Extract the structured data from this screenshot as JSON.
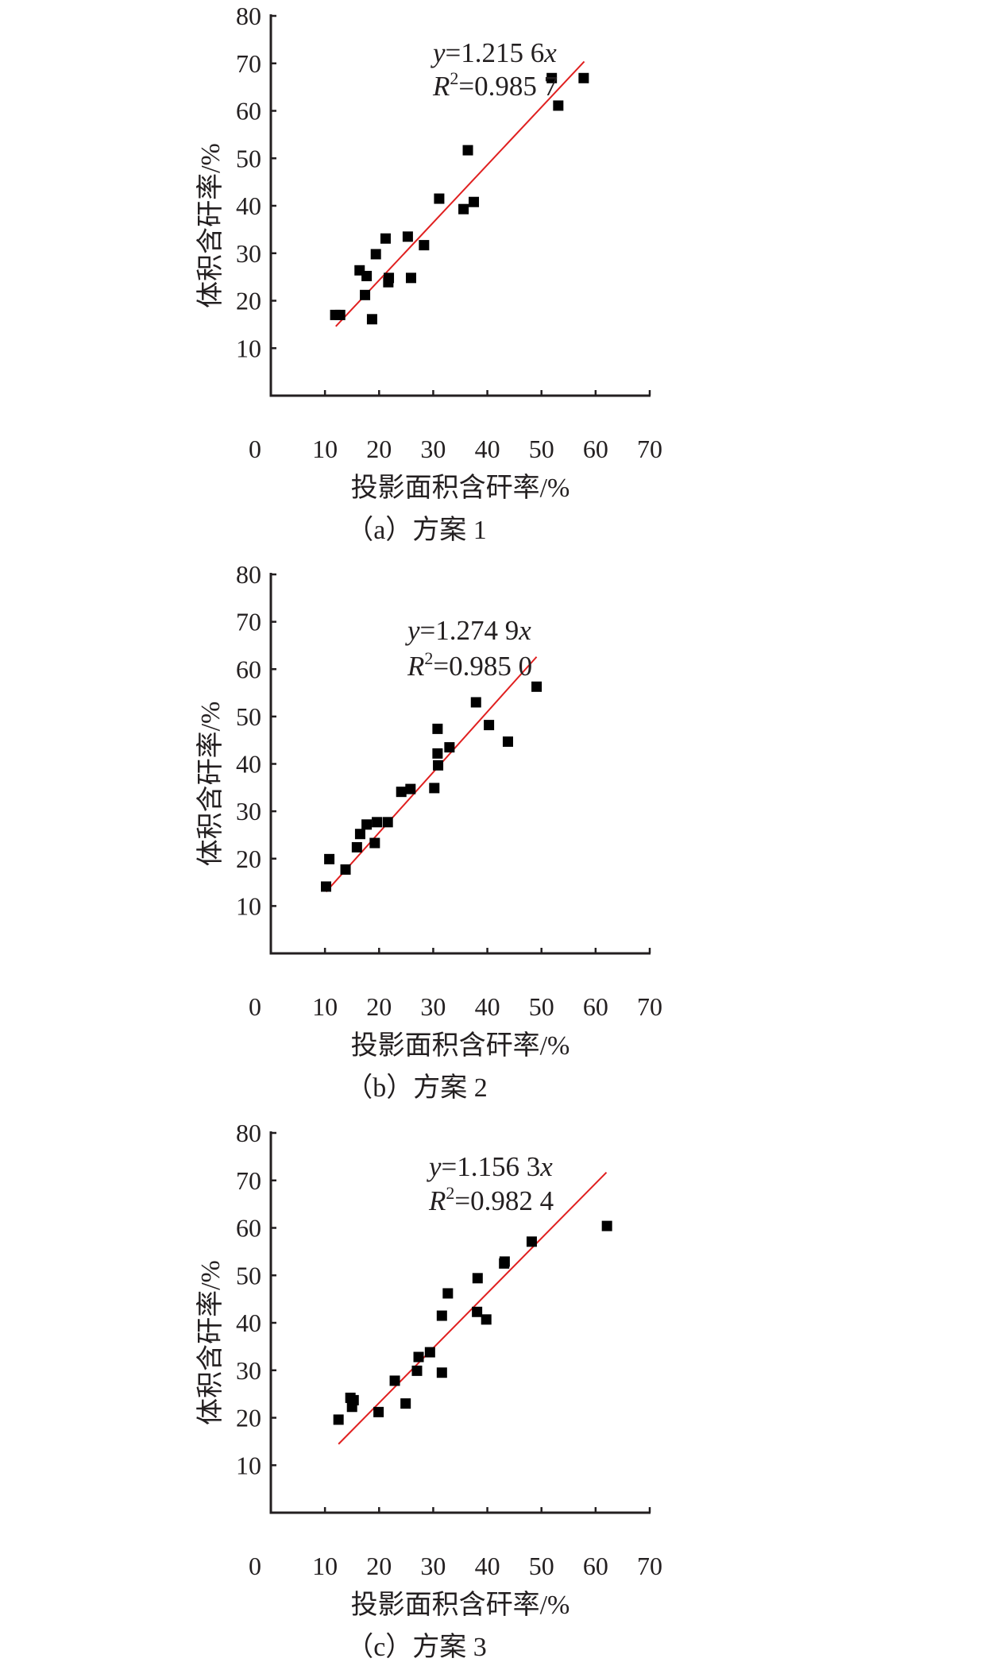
{
  "chart_data": [
    {
      "type": "scatter",
      "caption": "（a）方案 1",
      "xlabel": "投影面积含矸率/%",
      "ylabel": "体积含矸率/%",
      "xlim": [
        0,
        70
      ],
      "ylim": [
        0,
        80
      ],
      "xticks": [
        "0",
        "10",
        "20",
        "30",
        "40",
        "50",
        "60",
        "70"
      ],
      "yticks": [
        "10",
        "20",
        "30",
        "40",
        "50",
        "60",
        "70",
        "80"
      ],
      "grid": false,
      "fit": {
        "slope": 1.2156,
        "x_range": [
          12.0,
          57.9
        ],
        "eq_lhs": "y",
        "eq_coef": "=1.215 6",
        "eq_var": "x",
        "r2_label": "R",
        "r2_sup": "2",
        "r2_value": "=0.985 7",
        "color": "#e02020"
      },
      "points": [
        [
          11.9,
          17.0
        ],
        [
          12.8,
          17.0
        ],
        [
          16.4,
          26.4
        ],
        [
          17.7,
          25.2
        ],
        [
          17.4,
          21.2
        ],
        [
          18.7,
          16.1
        ],
        [
          19.4,
          29.8
        ],
        [
          21.2,
          33.1
        ],
        [
          21.8,
          24.8
        ],
        [
          21.7,
          23.9
        ],
        [
          25.3,
          33.5
        ],
        [
          25.9,
          24.8
        ],
        [
          28.3,
          31.7
        ],
        [
          31.1,
          41.5
        ],
        [
          35.6,
          39.3
        ],
        [
          37.5,
          40.8
        ],
        [
          36.4,
          51.7
        ],
        [
          51.9,
          66.9
        ],
        [
          53.1,
          61.1
        ],
        [
          57.8,
          66.9
        ]
      ]
    },
    {
      "type": "scatter",
      "caption": "（b）方案 2",
      "xlabel": "投影面积含矸率/%",
      "ylabel": "体积含矸率/%",
      "xlim": [
        0,
        70
      ],
      "ylim": [
        0,
        80
      ],
      "xticks": [
        "0",
        "10",
        "20",
        "30",
        "40",
        "50",
        "60",
        "70"
      ],
      "yticks": [
        "10",
        "20",
        "30",
        "40",
        "50",
        "60",
        "70",
        "80"
      ],
      "grid": false,
      "fit": {
        "slope": 1.2749,
        "x_range": [
          10.2,
          49.1
        ],
        "eq_lhs": "y",
        "eq_coef": "=1.274 9",
        "eq_var": "x",
        "r2_label": "R",
        "r2_sup": "2",
        "r2_value": "=0.985 0",
        "color": "#e02020"
      },
      "points": [
        [
          10.2,
          14.1
        ],
        [
          10.8,
          19.9
        ],
        [
          13.8,
          17.7
        ],
        [
          15.9,
          22.4
        ],
        [
          16.5,
          25.2
        ],
        [
          17.7,
          27.2
        ],
        [
          19.2,
          23.3
        ],
        [
          19.6,
          27.7
        ],
        [
          21.6,
          27.7
        ],
        [
          24.1,
          34.1
        ],
        [
          25.8,
          34.7
        ],
        [
          30.2,
          34.9
        ],
        [
          30.8,
          47.4
        ],
        [
          30.8,
          42.2
        ],
        [
          30.9,
          39.7
        ],
        [
          33.0,
          43.5
        ],
        [
          37.9,
          53.0
        ],
        [
          40.3,
          48.2
        ],
        [
          43.8,
          44.7
        ],
        [
          49.1,
          56.3
        ]
      ]
    },
    {
      "type": "scatter",
      "caption": "（c）方案 3",
      "xlabel": "投影面积含矸率/%",
      "ylabel": "体积含矸率/%",
      "xlim": [
        0,
        70
      ],
      "ylim": [
        0,
        80
      ],
      "xticks": [
        "0",
        "10",
        "20",
        "30",
        "40",
        "50",
        "60",
        "70"
      ],
      "yticks": [
        "10",
        "20",
        "30",
        "40",
        "50",
        "60",
        "70",
        "80"
      ],
      "grid": false,
      "fit": {
        "slope": 1.1563,
        "x_range": [
          12.5,
          62.0
        ],
        "eq_lhs": "y",
        "eq_coef": "=1.156 3",
        "eq_var": "x",
        "r2_label": "R",
        "r2_sup": "2",
        "r2_value": "=0.982 4",
        "color": "#e02020"
      },
      "points": [
        [
          12.5,
          19.6
        ],
        [
          14.7,
          24.2
        ],
        [
          15.3,
          23.7
        ],
        [
          15.0,
          22.3
        ],
        [
          19.9,
          21.2
        ],
        [
          22.9,
          27.8
        ],
        [
          24.9,
          23.0
        ],
        [
          27.0,
          29.9
        ],
        [
          27.3,
          32.8
        ],
        [
          29.4,
          33.8
        ],
        [
          31.6,
          29.5
        ],
        [
          31.6,
          41.5
        ],
        [
          32.7,
          46.2
        ],
        [
          38.1,
          42.3
        ],
        [
          38.2,
          49.4
        ],
        [
          39.8,
          40.7
        ],
        [
          43.1,
          52.5
        ],
        [
          43.2,
          52.9
        ],
        [
          48.2,
          57.1
        ],
        [
          62.1,
          60.4
        ]
      ]
    }
  ]
}
